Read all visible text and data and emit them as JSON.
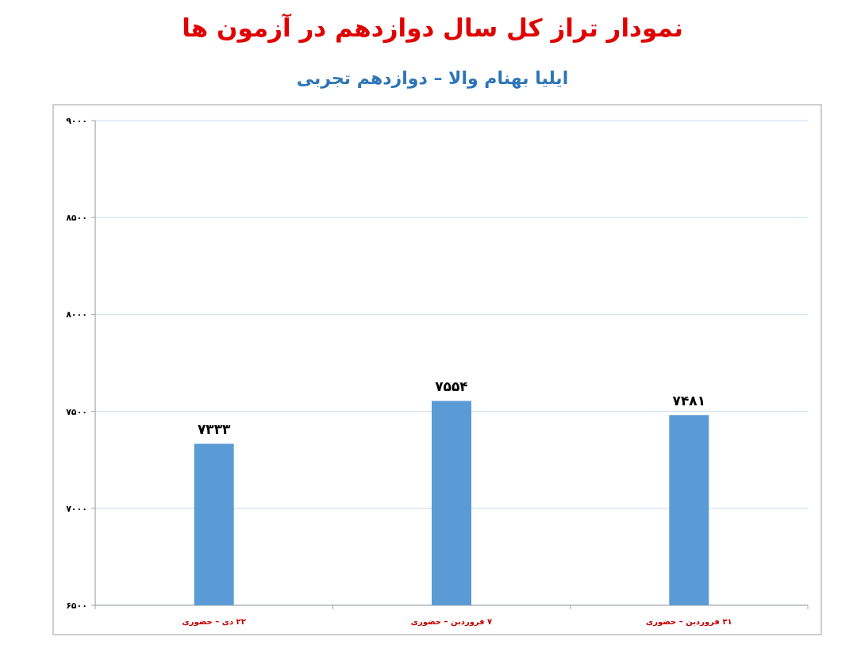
{
  "chart_data": {
    "type": "bar",
    "title": "نمودار تراز کل سال دوازدهم در آزمون ها",
    "subtitle": "ایلیا بهنام والا – دوازدهم تجربی",
    "categories": [
      "۲۲ دی – حضوری",
      "۷ فروردین – حضوری",
      "۳۱ فروردین – حضوری"
    ],
    "values": [
      7333,
      7554,
      7481
    ],
    "value_labels": [
      "۷۳۳۳",
      "۷۵۵۴",
      "۷۴۸۱"
    ],
    "color": "#5b9bd5",
    "ylim": [
      6500,
      9000
    ],
    "yticks": [
      {
        "value": 6500,
        "label": "۶۵۰۰"
      },
      {
        "value": 7000,
        "label": "۷۰۰۰"
      },
      {
        "value": 7500,
        "label": "۷۵۰۰"
      },
      {
        "value": 8000,
        "label": "۸۰۰۰"
      },
      {
        "value": 8500,
        "label": "۸۵۰۰"
      },
      {
        "value": 9000,
        "label": "۹۰۰۰"
      }
    ],
    "grid": "y"
  }
}
